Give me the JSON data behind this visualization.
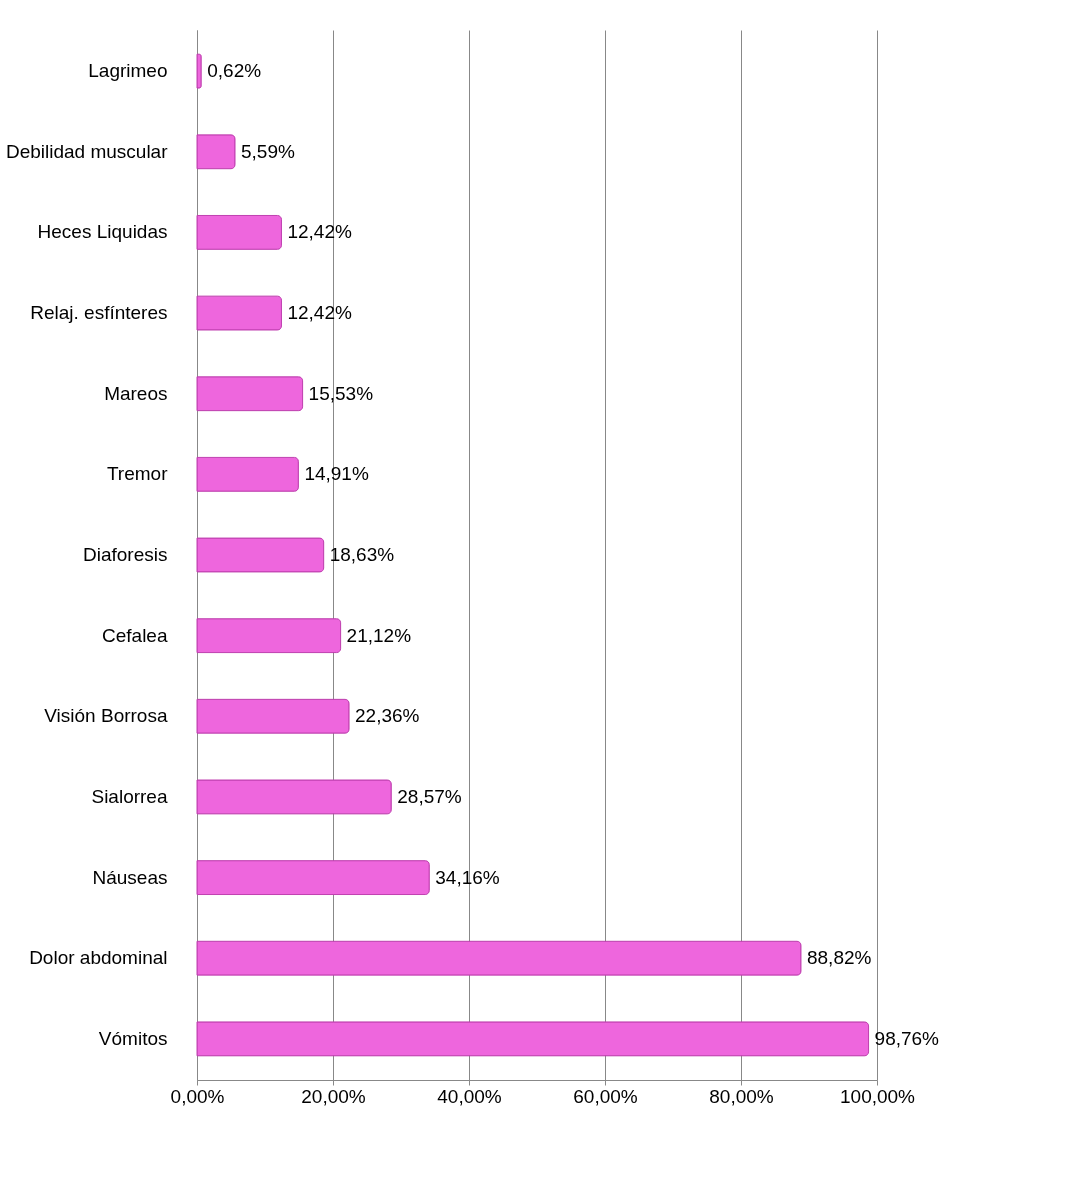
{
  "chart_data": {
    "type": "bar",
    "orientation": "horizontal",
    "categories": [
      "Lagrimeo",
      "Debilidad muscular",
      "Heces Liquidas",
      "Relaj.  esfínteres",
      "Mareos",
      "Tremor",
      "Diaforesis",
      "Cefalea",
      "Visión Borrosa",
      "Sialorrea",
      "Náuseas",
      "Dolor abdominal",
      "Vómitos"
    ],
    "values": [
      0.62,
      5.59,
      12.42,
      12.42,
      15.53,
      14.91,
      18.63,
      21.12,
      22.36,
      28.57,
      34.16,
      88.82,
      98.76
    ],
    "value_labels": [
      "0,62%",
      "5,59%",
      "12,42%",
      "12,42%",
      "15,53%",
      "14,91%",
      "18,63%",
      "21,12%",
      "22,36%",
      "28,57%",
      "34,16%",
      "88,82%",
      "98,76%"
    ],
    "color": "#ee66dd",
    "xlim": [
      0,
      100
    ],
    "xticks": [
      {
        "value": 0,
        "label": "0,00%"
      },
      {
        "value": 20,
        "label": "20,00%"
      },
      {
        "value": 40,
        "label": "40,00%"
      },
      {
        "value": 60,
        "label": "60,00%"
      },
      {
        "value": 80,
        "label": "80,00%"
      },
      {
        "value": 100,
        "label": "100,00%"
      }
    ],
    "grid": "x"
  }
}
